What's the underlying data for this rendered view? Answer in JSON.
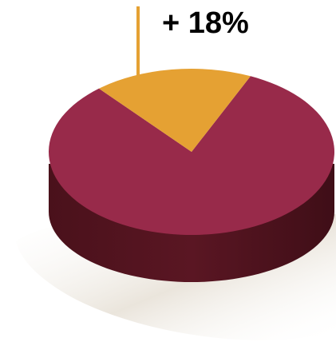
{
  "chart_data": {
    "type": "pie",
    "style": "3d",
    "slices": [
      {
        "label": "+ 18%",
        "value": 18,
        "color": "#E5A133"
      },
      {
        "label": "",
        "value": 82,
        "color": "#982A4A"
      }
    ],
    "annotations": [
      "+ 18%"
    ],
    "colors": {
      "slice_highlight": "#E5A133",
      "slice_main_top": "#982A4A",
      "side_wall": "#51141F",
      "shadow": "#E8E2D8"
    }
  }
}
